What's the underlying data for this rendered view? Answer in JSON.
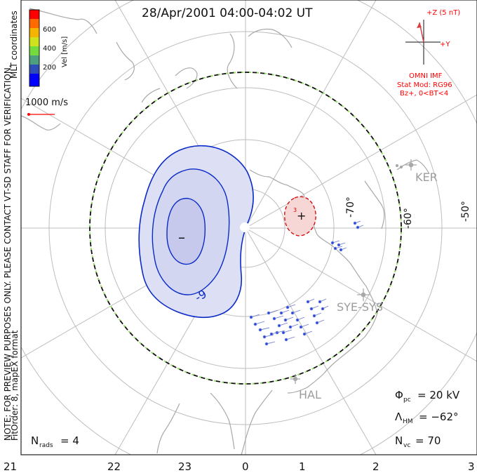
{
  "title": "28/Apr/2001 04:00-04:02 UT",
  "side_notes": {
    "verification_note": "NOTE: FOR PREVIEW PURPOSES ONLY. PLEASE CONTACT VT-SD STAFF FOR VERIFICATION.",
    "fit_order_note": "FitOrder: 8, mapEX format",
    "coordinate_system": "MLT coordinates"
  },
  "velocity_scale": {
    "label": "Vel [m/s]",
    "ticks": [
      "600",
      "400",
      "200"
    ],
    "colors": [
      "#0000ff",
      "#2f4db7",
      "#4e9f80",
      "#73db3d",
      "#cfe21e",
      "#f5b400",
      "#ff6a00",
      "#ff0000"
    ],
    "reference_vector_label": "1000 m/s",
    "reference_vector_color": "#ff0000"
  },
  "imf_panel": {
    "z_axis_label": "+Z (5 nT)",
    "y_axis_label": "+Y",
    "source_label": "OMNI IMF",
    "model_label": "Stat Mod: RG96",
    "condition_label": "Bz+, 0<BT<4",
    "color": "#ff0000",
    "imf_vector_color": "#d94040"
  },
  "mlt_labels": [
    "21",
    "22",
    "23",
    "0",
    "1",
    "2",
    "3"
  ],
  "latitude_labels": [
    "-70°",
    "-60°",
    "-50°"
  ],
  "stations": [
    {
      "name": "KER",
      "color": "#a9a9a9"
    },
    {
      "name": "SYE-SYS",
      "color": "#a9a9a9"
    },
    {
      "name": "HAL",
      "color": "#a9a9a9"
    }
  ],
  "potential_markers": {
    "minimum_symbol": "–",
    "maximum_symbol": "+",
    "contour_label": "-9",
    "positive_contour_label": "3"
  },
  "stats": {
    "n_rads_label": "N",
    "n_rads_sub": "rads",
    "n_rads_value": "= 4",
    "phi_label": "Φ",
    "phi_sub": "pc",
    "phi_value": "= 20 kV",
    "lambda_label": "Λ",
    "lambda_sub": "HM",
    "lambda_value": "= −62°",
    "nvc_label": "N",
    "nvc_sub": "vc",
    "nvc_value": "= 70"
  },
  "colors": {
    "grid": "#bdbdbd",
    "coastline": "#a8a8a8",
    "negative_fill": "#dde0f4",
    "negative_fill_inner": "#c6c8ec",
    "negative_contour": "#0b2bc8",
    "positive_fill": "#f7d6d6",
    "positive_contour": "#d40000",
    "hm_boundary_dash_a": "#111111",
    "hm_boundary_dash_b": "#8ee05a",
    "vector_dot": "#1f47e8",
    "vector_stroke": "#6e7ccf",
    "station_label": "#9d9d9d"
  }
}
